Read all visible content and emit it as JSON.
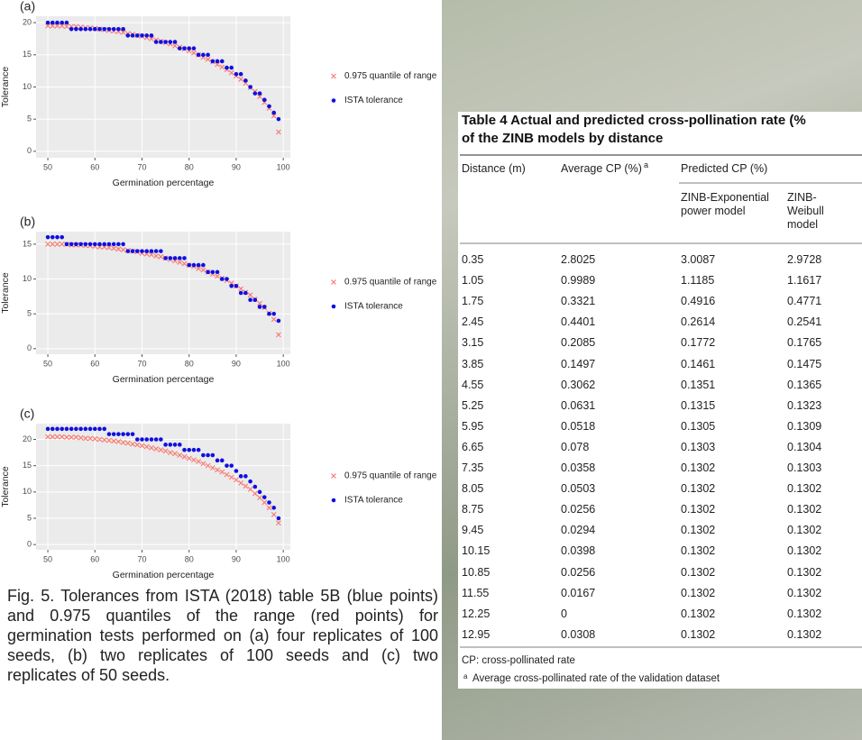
{
  "chart_data": [
    {
      "type": "scatter",
      "title": "(a)",
      "x_label": "Germination percentage",
      "y_label": "Tolerance",
      "xlim": [
        47.5,
        101.5
      ],
      "ylim": [
        -1,
        21
      ],
      "xticks": [
        50,
        60,
        70,
        80,
        90,
        100
      ],
      "yticks": [
        0,
        5,
        10,
        15,
        20
      ],
      "grid": true,
      "x": [
        50,
        51,
        52,
        53,
        54,
        55,
        56,
        57,
        58,
        59,
        60,
        61,
        62,
        63,
        64,
        65,
        66,
        67,
        68,
        69,
        70,
        71,
        72,
        73,
        74,
        75,
        76,
        77,
        78,
        79,
        80,
        81,
        82,
        83,
        84,
        85,
        86,
        87,
        88,
        89,
        90,
        91,
        92,
        93,
        94,
        95,
        96,
        97,
        98,
        99
      ],
      "series": [
        {
          "name": "0.975 quantile of range",
          "color": "#f8766d",
          "marker": "x",
          "values": [
            19.5,
            19.5,
            19.5,
            19.5,
            19.4,
            19.4,
            19.4,
            19.3,
            19.2,
            19.2,
            19.1,
            19.0,
            18.9,
            18.8,
            18.7,
            18.6,
            18.5,
            18.3,
            18.2,
            18.0,
            17.9,
            17.7,
            17.5,
            17.3,
            17.1,
            16.9,
            16.7,
            16.4,
            16.2,
            15.9,
            15.6,
            15.3,
            15.0,
            14.6,
            14.3,
            13.9,
            13.5,
            13.1,
            12.7,
            12.2,
            11.7,
            11.2,
            10.6,
            9.9,
            9.3,
            8.5,
            7.6,
            6.7,
            5.5,
            3.0
          ]
        },
        {
          "name": "ISTA tolerance",
          "color": "#1010e0",
          "marker": "o",
          "values": [
            20,
            20,
            20,
            20,
            20,
            19,
            19,
            19,
            19,
            19,
            19,
            19,
            19,
            19,
            19,
            19,
            19,
            18,
            18,
            18,
            18,
            18,
            18,
            17,
            17,
            17,
            17,
            17,
            16,
            16,
            16,
            16,
            15,
            15,
            15,
            14,
            14,
            14,
            13,
            13,
            12,
            12,
            11,
            10,
            9,
            9,
            8,
            7,
            6,
            5
          ]
        }
      ]
    },
    {
      "type": "scatter",
      "title": "(b)",
      "x_label": "Germination percentage",
      "y_label": "Tolerance",
      "xlim": [
        47.5,
        101.5
      ],
      "ylim": [
        -0.8,
        16.8
      ],
      "xticks": [
        50,
        60,
        70,
        80,
        90,
        100
      ],
      "yticks": [
        0,
        5,
        10,
        15
      ],
      "grid": true,
      "x": [
        50,
        51,
        52,
        53,
        54,
        55,
        56,
        57,
        58,
        59,
        60,
        61,
        62,
        63,
        64,
        65,
        66,
        67,
        68,
        69,
        70,
        71,
        72,
        73,
        74,
        75,
        76,
        77,
        78,
        79,
        80,
        81,
        82,
        83,
        84,
        85,
        86,
        87,
        88,
        89,
        90,
        91,
        92,
        93,
        94,
        95,
        96,
        97,
        98,
        99
      ],
      "series": [
        {
          "name": "0.975 quantile of range",
          "color": "#f8766d",
          "marker": "x",
          "values": [
            15.0,
            15.0,
            15.0,
            15.0,
            15.0,
            14.9,
            14.9,
            14.9,
            14.8,
            14.8,
            14.7,
            14.6,
            14.6,
            14.5,
            14.4,
            14.3,
            14.2,
            14.1,
            14.0,
            13.9,
            13.7,
            13.6,
            13.5,
            13.3,
            13.2,
            13.0,
            12.8,
            12.6,
            12.4,
            12.2,
            12.0,
            11.8,
            11.5,
            11.3,
            11.0,
            10.7,
            10.4,
            10.1,
            9.8,
            9.4,
            9.0,
            8.6,
            8.1,
            7.7,
            7.1,
            6.5,
            5.9,
            5.1,
            4.2,
            2.0
          ]
        },
        {
          "name": "ISTA tolerance",
          "color": "#1010e0",
          "marker": "o",
          "values": [
            16,
            16,
            16,
            16,
            15,
            15,
            15,
            15,
            15,
            15,
            15,
            15,
            15,
            15,
            15,
            15,
            15,
            14,
            14,
            14,
            14,
            14,
            14,
            14,
            14,
            13,
            13,
            13,
            13,
            13,
            12,
            12,
            12,
            12,
            11,
            11,
            11,
            10,
            10,
            9,
            9,
            8,
            8,
            7,
            7,
            6,
            6,
            5,
            5,
            4
          ]
        }
      ]
    },
    {
      "type": "scatter",
      "title": "(c)",
      "x_label": "Germination percentage",
      "y_label": "Tolerance",
      "xlim": [
        47.5,
        101.5
      ],
      "ylim": [
        -1,
        23
      ],
      "xticks": [
        50,
        60,
        70,
        80,
        90,
        100
      ],
      "yticks": [
        0,
        5,
        10,
        15,
        20
      ],
      "grid": true,
      "x": [
        50,
        51,
        52,
        53,
        54,
        55,
        56,
        57,
        58,
        59,
        60,
        61,
        62,
        63,
        64,
        65,
        66,
        67,
        68,
        69,
        70,
        71,
        72,
        73,
        74,
        75,
        76,
        77,
        78,
        79,
        80,
        81,
        82,
        83,
        84,
        85,
        86,
        87,
        88,
        89,
        90,
        91,
        92,
        93,
        94,
        95,
        96,
        97,
        98,
        99
      ],
      "series": [
        {
          "name": "0.975 quantile of range",
          "color": "#f8766d",
          "marker": "x",
          "values": [
            20.5,
            20.5,
            20.5,
            20.5,
            20.4,
            20.4,
            20.4,
            20.3,
            20.2,
            20.2,
            20.1,
            20.0,
            19.9,
            19.8,
            19.7,
            19.6,
            19.4,
            19.3,
            19.1,
            19.0,
            18.8,
            18.6,
            18.4,
            18.2,
            18.0,
            17.8,
            17.5,
            17.3,
            17.0,
            16.7,
            16.4,
            16.1,
            15.8,
            15.4,
            15.0,
            14.6,
            14.2,
            13.8,
            13.3,
            12.8,
            12.3,
            11.7,
            11.1,
            10.5,
            9.7,
            8.9,
            8.0,
            7.0,
            5.7,
            4.1
          ]
        },
        {
          "name": "ISTA tolerance",
          "color": "#1010e0",
          "marker": "o",
          "values": [
            22,
            22,
            22,
            22,
            22,
            22,
            22,
            22,
            22,
            22,
            22,
            22,
            22,
            21,
            21,
            21,
            21,
            21,
            21,
            20,
            20,
            20,
            20,
            20,
            20,
            19,
            19,
            19,
            19,
            18,
            18,
            18,
            18,
            17,
            17,
            17,
            16,
            16,
            15,
            15,
            14,
            13,
            13,
            12,
            11,
            10,
            9,
            8,
            7,
            5
          ]
        }
      ]
    }
  ],
  "figure_caption": "Fig. 5. Tolerances from ISTA (2018) table 5B (blue points) and 0.975 quantiles of the range (red points) for germination tests performed on (a) four replicates of 100 seeds, (b) two replicates of 100 seeds and (c) two replicates of 50 seeds.",
  "table": {
    "title_lines": [
      "Table 4 Actual and predicted cross-pollination rate (%",
      "of the ZINB models by distance"
    ],
    "header": {
      "distance": "Distance (m)",
      "average": "Average CP (%)",
      "average_note": "a",
      "predicted": "Predicted CP (%)",
      "exponential": "ZINB-Exponential power model",
      "weibull": "ZINB-Weibull model"
    },
    "rows": [
      [
        "0.35",
        "2.8025",
        "3.0087",
        "2.9728"
      ],
      [
        "1.05",
        "0.9989",
        "1.1185",
        "1.1617"
      ],
      [
        "1.75",
        "0.3321",
        "0.4916",
        "0.4771"
      ],
      [
        "2.45",
        "0.4401",
        "0.2614",
        "0.2541"
      ],
      [
        "3.15",
        "0.2085",
        "0.1772",
        "0.1765"
      ],
      [
        "3.85",
        "0.1497",
        "0.1461",
        "0.1475"
      ],
      [
        "4.55",
        "0.3062",
        "0.1351",
        "0.1365"
      ],
      [
        "5.25",
        "0.0631",
        "0.1315",
        "0.1323"
      ],
      [
        "5.95",
        "0.0518",
        "0.1305",
        "0.1309"
      ],
      [
        "6.65",
        "0.078",
        "0.1303",
        "0.1304"
      ],
      [
        "7.35",
        "0.0358",
        "0.1302",
        "0.1303"
      ],
      [
        "8.05",
        "0.0503",
        "0.1302",
        "0.1302"
      ],
      [
        "8.75",
        "0.0256",
        "0.1302",
        "0.1302"
      ],
      [
        "9.45",
        "0.0294",
        "0.1302",
        "0.1302"
      ],
      [
        "10.15",
        "0.0398",
        "0.1302",
        "0.1302"
      ],
      [
        "10.85",
        "0.0256",
        "0.1302",
        "0.1302"
      ],
      [
        "11.55",
        "0.0167",
        "0.1302",
        "0.1302"
      ],
      [
        "12.25",
        "0",
        "0.1302",
        "0.1302"
      ],
      [
        "12.95",
        "0.0308",
        "0.1302",
        "0.1302"
      ]
    ],
    "footnotes": {
      "cp": "CP: cross-pollinated rate",
      "mark": "a",
      "average": "Average cross-pollinated rate of the validation dataset"
    }
  }
}
